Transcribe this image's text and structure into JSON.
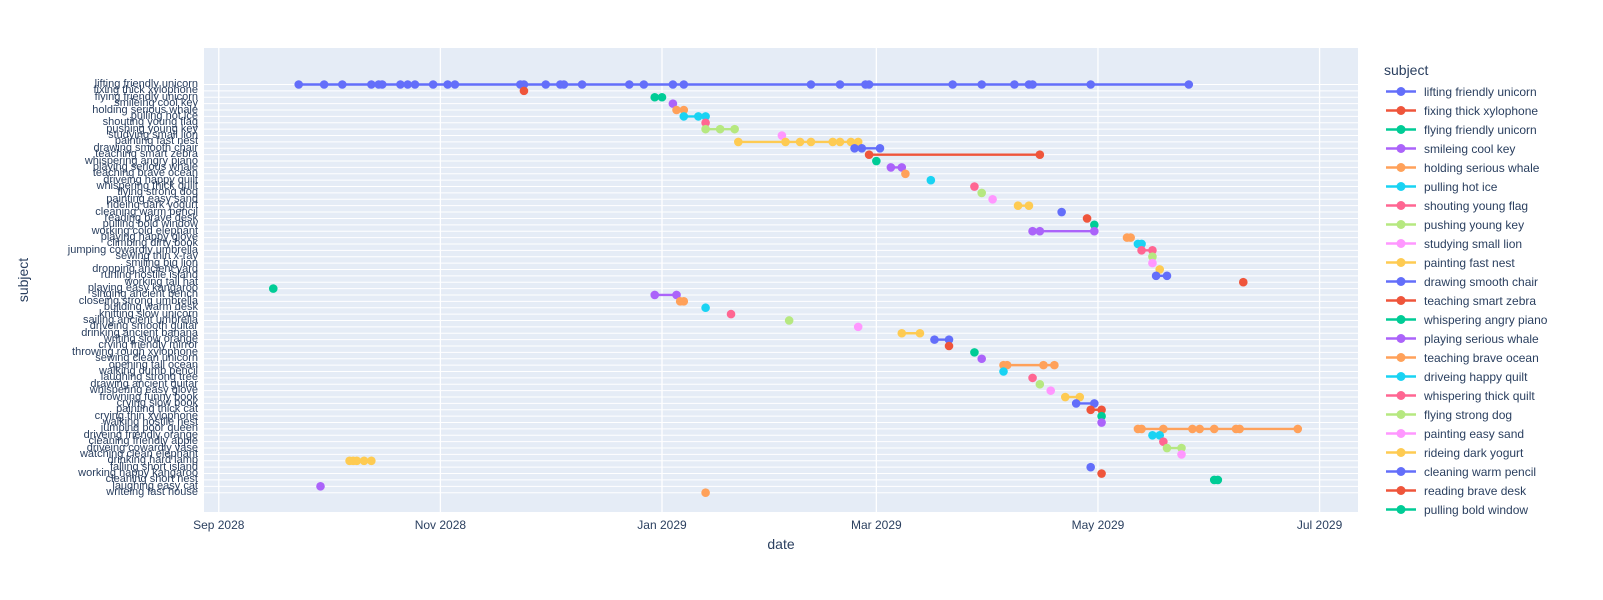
{
  "figure": {
    "plot_bg": "#E5ECF6",
    "grid_color": "#FFFFFF",
    "text_color": "#2a3f5f"
  },
  "chart_data": {
    "type": "scatter",
    "mode": "lines+markers",
    "title": "",
    "xlabel": "date",
    "ylabel": "subject",
    "grid": true,
    "legend": {
      "title": "subject",
      "position": "right",
      "visible_count": 23
    },
    "x_range": [
      "2028-08-27",
      "2029-07-14"
    ],
    "x_ticks": [
      {
        "label": "Sep 2028",
        "date": "2028-09-01"
      },
      {
        "label": "Nov 2028",
        "date": "2028-11-01"
      },
      {
        "label": "Jan 2029",
        "date": "2029-01-01"
      },
      {
        "label": "Mar 2029",
        "date": "2029-03-01"
      },
      {
        "label": "May 2029",
        "date": "2029-05-01"
      },
      {
        "label": "Jul 2029",
        "date": "2029-07-01"
      }
    ],
    "palette": [
      "#636EFA",
      "#EF553B",
      "#00CC96",
      "#AB63FA",
      "#FFA15A",
      "#19D3F3",
      "#FF6692",
      "#B6E880",
      "#FF97FF",
      "#FECB52"
    ],
    "series": [
      {
        "name": "lifting friendly unicorn",
        "dates": [
          "2028-09-23",
          "2028-09-30",
          "2028-10-05",
          "2028-10-13",
          "2028-10-15",
          "2028-10-16",
          "2028-10-21",
          "2028-10-23",
          "2028-10-25",
          "2028-10-30",
          "2028-11-03",
          "2028-11-05",
          "2028-11-23",
          "2028-11-24",
          "2028-11-30",
          "2028-12-04",
          "2028-12-05",
          "2028-12-10",
          "2028-12-23",
          "2028-12-27",
          "2029-01-04",
          "2029-01-07",
          "2029-02-11",
          "2029-02-19",
          "2029-02-26",
          "2029-02-27",
          "2029-03-22",
          "2029-03-30",
          "2029-04-08",
          "2029-04-12",
          "2029-04-13",
          "2029-04-29",
          "2029-05-26"
        ]
      },
      {
        "name": "fixing thick xylophone",
        "dates": [
          "2028-11-24"
        ]
      },
      {
        "name": "flying friendly unicorn",
        "dates": [
          "2028-12-30",
          "2029-01-01"
        ]
      },
      {
        "name": "smileing cool key",
        "dates": [
          "2029-01-04"
        ]
      },
      {
        "name": "holding serious whale",
        "dates": [
          "2029-01-05",
          "2029-01-07"
        ]
      },
      {
        "name": "pulling hot ice",
        "dates": [
          "2029-01-07",
          "2029-01-11",
          "2029-01-13"
        ]
      },
      {
        "name": "shouting young flag",
        "dates": [
          "2029-01-13"
        ]
      },
      {
        "name": "pushing young key",
        "dates": [
          "2029-01-13",
          "2029-01-17",
          "2029-01-21"
        ]
      },
      {
        "name": "studying small lion",
        "dates": [
          "2029-02-03"
        ]
      },
      {
        "name": "painting fast nest",
        "dates": [
          "2029-01-22",
          "2029-02-04",
          "2029-02-08",
          "2029-02-11",
          "2029-02-17",
          "2029-02-19",
          "2029-02-22",
          "2029-02-24"
        ]
      },
      {
        "name": "drawing smooth chair",
        "dates": [
          "2029-02-23",
          "2029-02-25",
          "2029-03-02"
        ]
      },
      {
        "name": "teaching smart zebra",
        "dates": [
          "2029-02-27",
          "2029-04-15"
        ]
      },
      {
        "name": "whispering angry piano",
        "dates": [
          "2029-03-01"
        ]
      },
      {
        "name": "playing serious whale",
        "dates": [
          "2029-03-05",
          "2029-03-08"
        ]
      },
      {
        "name": "teaching brave ocean",
        "dates": [
          "2029-03-09"
        ]
      },
      {
        "name": "driveing happy quilt",
        "dates": [
          "2029-03-16"
        ]
      },
      {
        "name": "whispering thick quilt",
        "dates": [
          "2029-03-28"
        ]
      },
      {
        "name": "flying strong dog",
        "dates": [
          "2029-03-30"
        ]
      },
      {
        "name": "painting easy sand",
        "dates": [
          "2029-04-02"
        ]
      },
      {
        "name": "rideing dark yogurt",
        "dates": [
          "2029-04-09",
          "2029-04-12"
        ]
      },
      {
        "name": "cleaning warm pencil",
        "dates": [
          "2029-04-21"
        ]
      },
      {
        "name": "reading brave desk",
        "dates": [
          "2029-04-28"
        ]
      },
      {
        "name": "pulling bold window",
        "dates": [
          "2029-04-30"
        ]
      },
      {
        "name": "working cold elephant",
        "dates": [
          "2029-04-13",
          "2029-04-15",
          "2029-04-30"
        ]
      },
      {
        "name": "playing happy glove",
        "dates": [
          "2029-05-09",
          "2029-05-10"
        ]
      },
      {
        "name": "climbing dirty book",
        "dates": [
          "2029-05-12",
          "2029-05-13"
        ]
      },
      {
        "name": "jumping cowardly umbrella",
        "dates": [
          "2029-05-13",
          "2029-05-16"
        ]
      },
      {
        "name": "sewing thin x-ray",
        "dates": [
          "2029-05-16"
        ]
      },
      {
        "name": "smiling big lion",
        "dates": [
          "2029-05-16"
        ]
      },
      {
        "name": "dropping ancient yard",
        "dates": [
          "2029-05-18"
        ]
      },
      {
        "name": "runing hostile island",
        "dates": [
          "2029-05-17",
          "2029-05-20"
        ]
      },
      {
        "name": "working tall hat",
        "dates": [
          "2029-06-10"
        ]
      },
      {
        "name": "playing easy kangaroo",
        "dates": [
          "2028-09-16"
        ]
      },
      {
        "name": "singing ancient bench",
        "dates": [
          "2028-12-30",
          "2029-01-05"
        ]
      },
      {
        "name": "closeing strong umbrella",
        "dates": [
          "2029-01-06",
          "2029-01-07"
        ]
      },
      {
        "name": "building warm desk",
        "dates": [
          "2029-01-13"
        ]
      },
      {
        "name": "knitting slow unicorn",
        "dates": [
          "2029-01-20"
        ]
      },
      {
        "name": "sailing ancient umbrella",
        "dates": [
          "2029-02-05"
        ]
      },
      {
        "name": "driveing smooth guitar",
        "dates": [
          "2029-02-24"
        ]
      },
      {
        "name": "drinking ancient banana",
        "dates": [
          "2029-03-08",
          "2029-03-13"
        ]
      },
      {
        "name": "writing slow orange",
        "dates": [
          "2029-03-17",
          "2029-03-21"
        ]
      },
      {
        "name": "crying friendly mirror",
        "dates": [
          "2029-03-21"
        ]
      },
      {
        "name": "throwing rough xylophone",
        "dates": [
          "2029-03-28"
        ]
      },
      {
        "name": "sewing clean unicorn",
        "dates": [
          "2029-03-30"
        ]
      },
      {
        "name": "opening tall ocean",
        "dates": [
          "2029-04-05",
          "2029-04-06",
          "2029-04-16",
          "2029-04-19"
        ]
      },
      {
        "name": "walking dumb pencil",
        "dates": [
          "2029-04-05"
        ]
      },
      {
        "name": "laughing strong tree",
        "dates": [
          "2029-04-13"
        ]
      },
      {
        "name": "drawing ancient guitar",
        "dates": [
          "2029-04-15"
        ]
      },
      {
        "name": "whispering easy glove",
        "dates": [
          "2029-04-18"
        ]
      },
      {
        "name": "frowning funny book",
        "dates": [
          "2029-04-22",
          "2029-04-26"
        ]
      },
      {
        "name": "crying slow book",
        "dates": [
          "2029-04-25",
          "2029-04-30"
        ]
      },
      {
        "name": "painting thick cat",
        "dates": [
          "2029-04-29",
          "2029-05-02"
        ]
      },
      {
        "name": "crying thin xylophone",
        "dates": [
          "2029-05-02"
        ]
      },
      {
        "name": "walking hostile nest",
        "dates": [
          "2029-05-02"
        ]
      },
      {
        "name": "jumping poor queen",
        "dates": [
          "2029-05-12",
          "2029-05-13",
          "2029-05-19",
          "2029-05-27",
          "2029-05-29",
          "2029-06-02",
          "2029-06-08",
          "2029-06-09",
          "2029-06-25"
        ]
      },
      {
        "name": "driveing friendly orange",
        "dates": [
          "2029-05-16",
          "2029-05-18"
        ]
      },
      {
        "name": "cleaning friendly apple",
        "dates": [
          "2029-05-19"
        ]
      },
      {
        "name": "driveing cowardly vase",
        "dates": [
          "2029-05-20",
          "2029-05-24"
        ]
      },
      {
        "name": "watching clean elephant",
        "dates": [
          "2029-05-24"
        ]
      },
      {
        "name": "drinking hard lamp",
        "dates": [
          "2028-10-07",
          "2028-10-08",
          "2028-10-09",
          "2028-10-11",
          "2028-10-13"
        ]
      },
      {
        "name": "falling short island",
        "dates": [
          "2029-04-29"
        ]
      },
      {
        "name": "working happy kangaroo",
        "dates": [
          "2029-05-02"
        ]
      },
      {
        "name": "cleaning short nest",
        "dates": [
          "2029-06-02",
          "2029-06-03"
        ]
      },
      {
        "name": "laughing easy cat",
        "dates": [
          "2028-09-29"
        ]
      },
      {
        "name": "writeing fast house",
        "dates": [
          "2029-01-13"
        ]
      }
    ]
  }
}
